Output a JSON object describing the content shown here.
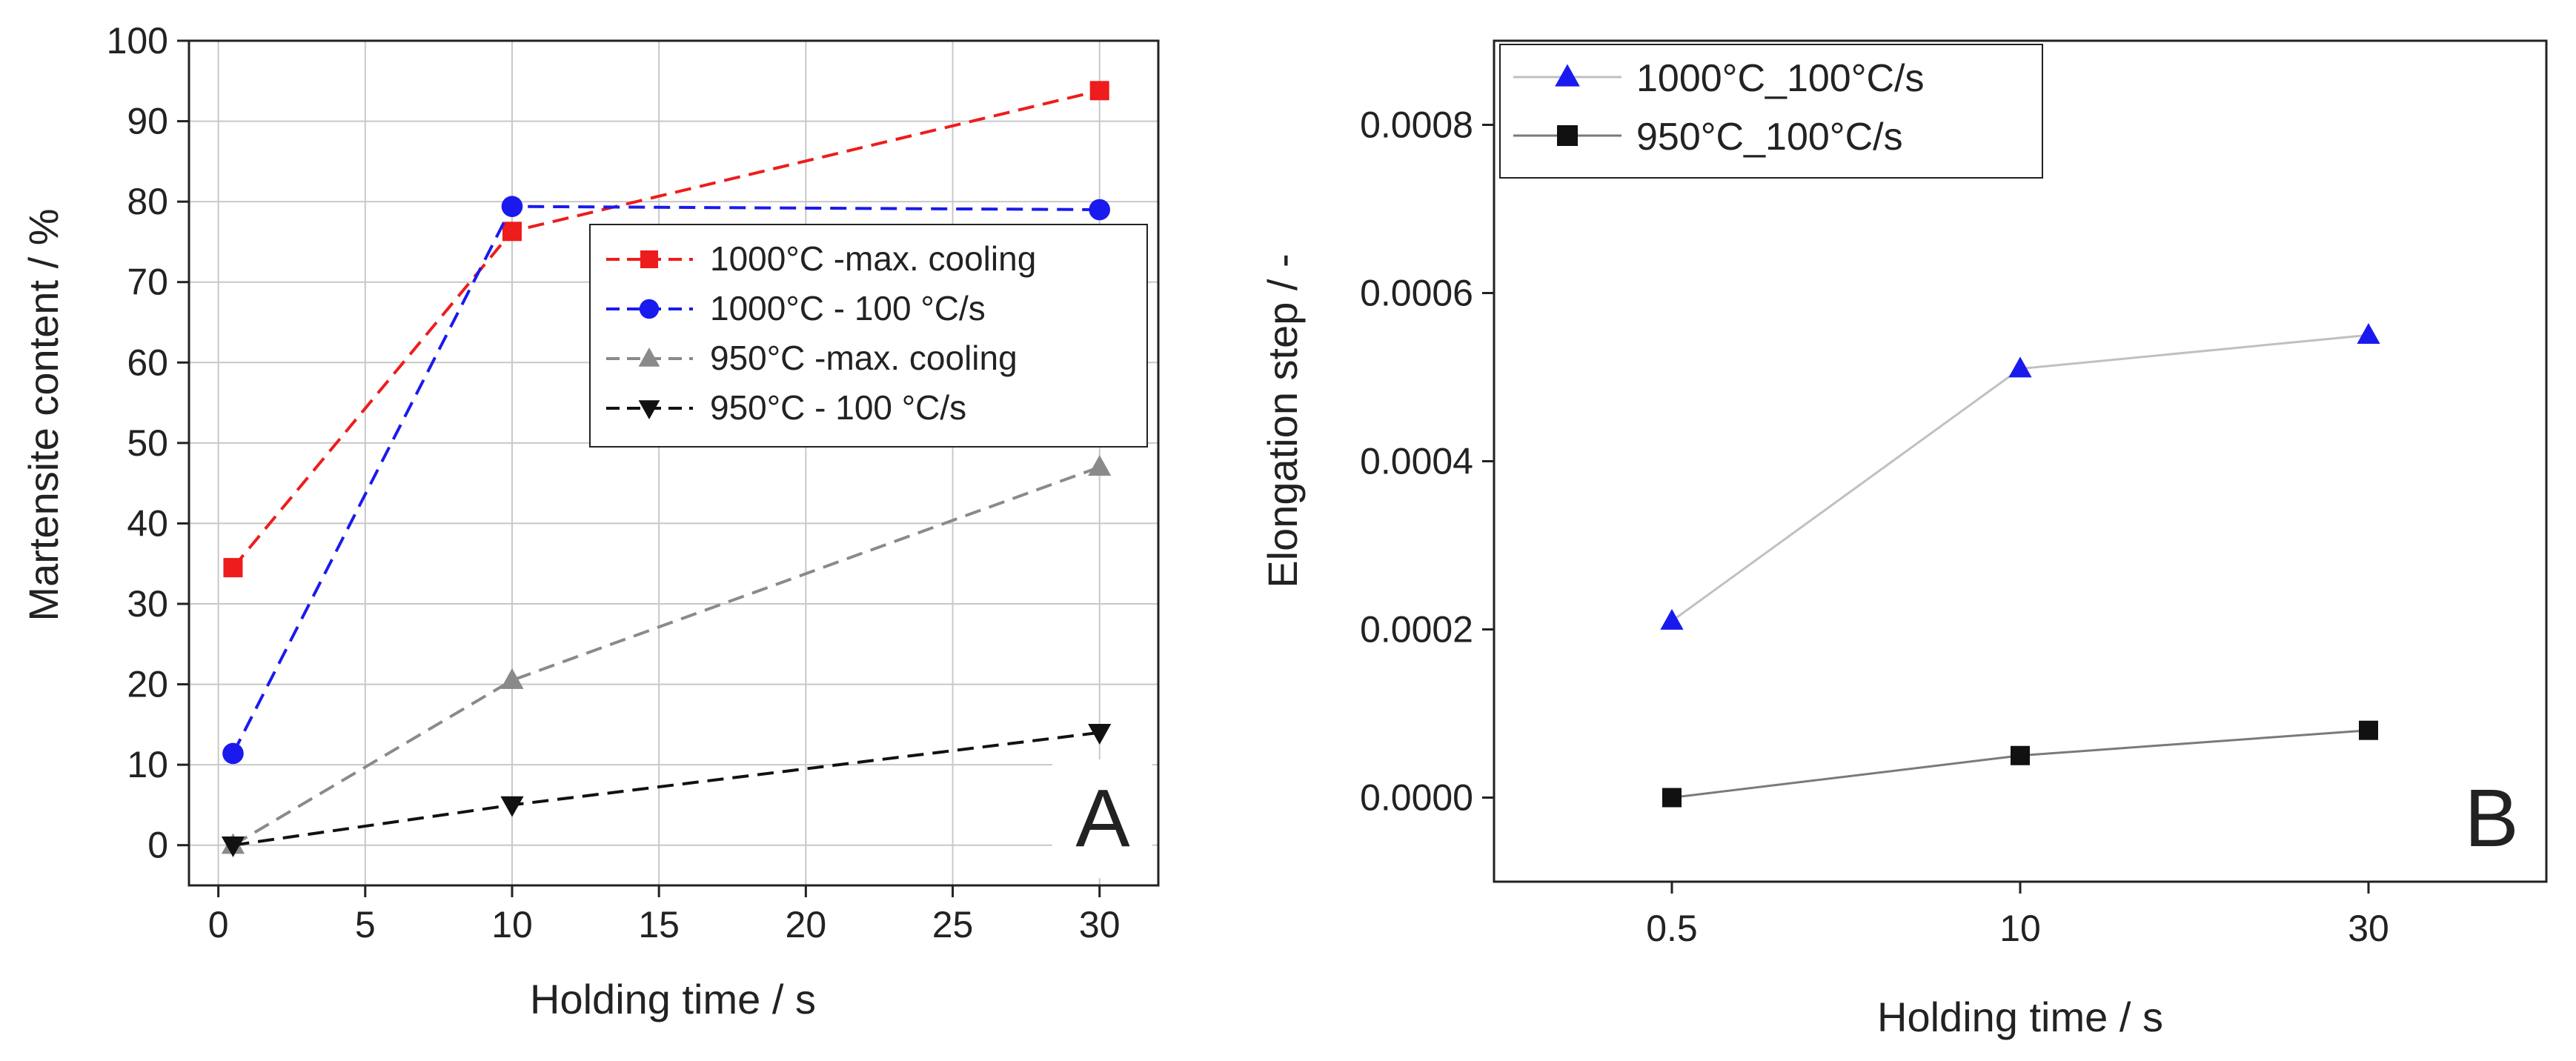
{
  "chart_data": [
    {
      "panel": "A",
      "type": "line",
      "panel_label": "A",
      "xlabel": "Holding time / s",
      "ylabel": "Martensite content / %",
      "xlim": [
        -1,
        32
      ],
      "ylim": [
        -5,
        100
      ],
      "x_ticks": [
        0,
        5,
        10,
        15,
        20,
        25,
        30
      ],
      "y_ticks": [
        0,
        10,
        20,
        30,
        40,
        50,
        60,
        70,
        80,
        90,
        100
      ],
      "grid": true,
      "legend_position": "middle-right",
      "series": [
        {
          "name": "1000°C -max. cooling",
          "color": "#ee1c1c",
          "marker": "square",
          "dash": true,
          "x": [
            0.5,
            10,
            30
          ],
          "y": [
            34.5,
            76.3,
            93.8
          ]
        },
        {
          "name": "1000°C - 100 °C/s",
          "color": "#1a1aee",
          "marker": "circle",
          "dash": true,
          "x": [
            0.5,
            10,
            30
          ],
          "y": [
            11.4,
            79.4,
            79.0
          ]
        },
        {
          "name": "950°C -max. cooling",
          "color": "#8a8a8a",
          "marker": "triangle-up",
          "dash": true,
          "x": [
            0.5,
            10,
            30
          ],
          "y": [
            0.0,
            20.5,
            47.0
          ]
        },
        {
          "name": "950°C - 100 °C/s",
          "color": "#111111",
          "marker": "triangle-down",
          "dash": true,
          "x": [
            0.5,
            10,
            30
          ],
          "y": [
            0.0,
            5.0,
            14.0
          ]
        }
      ]
    },
    {
      "panel": "B",
      "type": "line",
      "panel_label": "B",
      "xlabel": "Holding time / s",
      "ylabel": "Elongation step / -",
      "categories": [
        "0.5",
        "10",
        "30"
      ],
      "ylim": [
        -0.0001,
        0.0009
      ],
      "y_tick_values": [
        0,
        0.0002,
        0.0004,
        0.0006,
        0.0008
      ],
      "y_tick_labels": [
        "0.0000",
        "0.0002",
        "0.0004",
        "0.0006",
        "0.0008"
      ],
      "grid": false,
      "legend_position": "top-left",
      "series": [
        {
          "name": "1000°C_100°C/s",
          "color": "#1a1aee",
          "line_color": "#c0c0c0",
          "marker": "triangle-up",
          "values": [
            0.00021,
            0.00051,
            0.00055
          ]
        },
        {
          "name": "950°C_100°C/s",
          "color": "#111111",
          "line_color": "#7a7a7a",
          "marker": "square",
          "values": [
            0.0,
            5e-05,
            8e-05
          ]
        }
      ]
    }
  ]
}
